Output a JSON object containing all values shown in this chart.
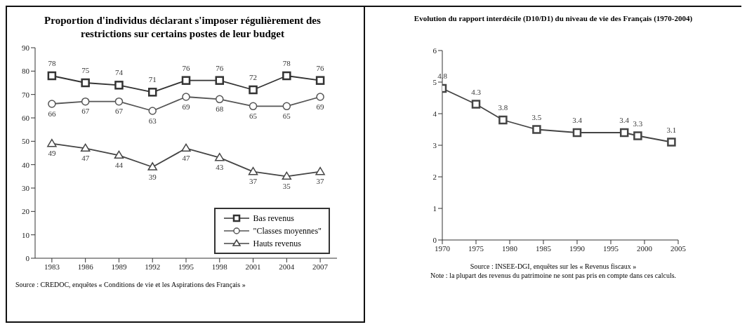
{
  "chart_data": [
    {
      "type": "line",
      "title": "Proportion d'individus déclarant s'imposer régulièrement des restrictions sur certains postes de leur budget",
      "categories": [
        "1983",
        "1986",
        "1989",
        "1992",
        "1995",
        "1998",
        "2001",
        "2004",
        "2007"
      ],
      "series": [
        {
          "name": "Bas revenus",
          "color": "#333333",
          "marker": "square",
          "values": [
            78,
            75,
            74,
            71,
            76,
            76,
            72,
            78,
            76
          ]
        },
        {
          "name": "\"Classes moyennes\"",
          "color": "#555555",
          "marker": "circle",
          "values": [
            66,
            67,
            67,
            63,
            69,
            68,
            65,
            65,
            69
          ]
        },
        {
          "name": "Hauts revenus",
          "color": "#444444",
          "marker": "triangle",
          "values": [
            49,
            47,
            44,
            39,
            47,
            43,
            37,
            35,
            37
          ]
        }
      ],
      "ylim": [
        0,
        90
      ],
      "yticks": [
        0,
        10,
        20,
        30,
        40,
        50,
        60,
        70,
        80,
        90
      ],
      "data_labels": true,
      "legend": "bottom right",
      "grid": false,
      "annotations": [
        "Source : CREDOC, enquêtes « Conditions de vie et les Aspirations des Français »"
      ]
    },
    {
      "type": "line",
      "title": "Evolution du rapport interdécile (D10/D1) du niveau de vie des Français (1970-2004)",
      "x": [
        1970,
        1975,
        1979,
        1984,
        1990,
        1997,
        1999,
        2004
      ],
      "series": [
        {
          "color": "#444444",
          "marker": "square",
          "values": [
            4.8,
            4.3,
            3.8,
            3.5,
            3.4,
            3.4,
            3.3,
            3.1
          ]
        }
      ],
      "xlim": [
        1970,
        2005
      ],
      "xticks": [
        1970,
        1975,
        1980,
        1985,
        1990,
        1995,
        2000,
        2005
      ],
      "ylim": [
        0,
        6
      ],
      "yticks": [
        0,
        1,
        2,
        3,
        4,
        5,
        6
      ],
      "data_labels": true,
      "legend": false,
      "grid": false,
      "annotations": [
        "Source : INSEE-DGI, enquêtes sur les « Revenus fiscaux »",
        "Note : la plupart des revenus du patrimoine ne sont pas pris en compte dans ces calculs."
      ]
    }
  ]
}
